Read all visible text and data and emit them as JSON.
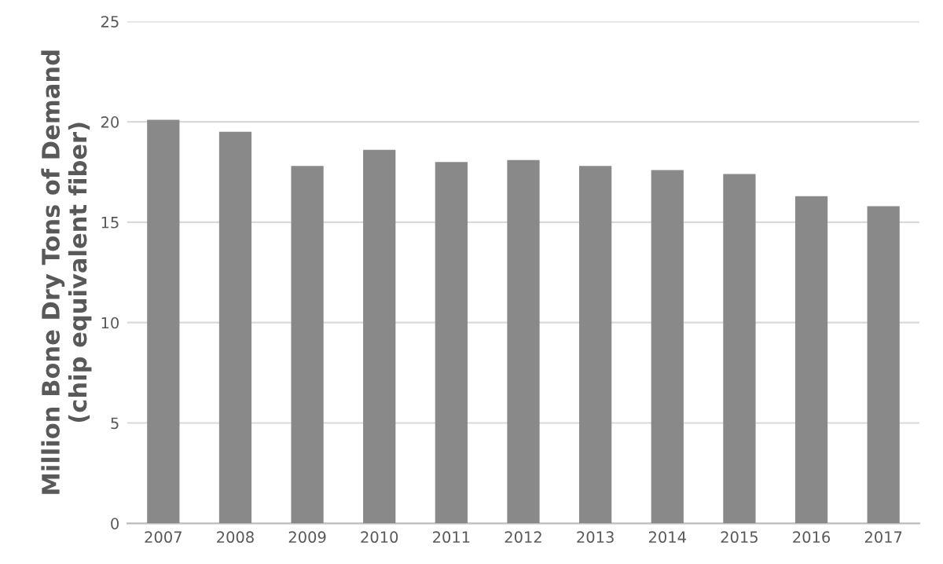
{
  "chart_data": {
    "type": "bar",
    "ylabel": "Million Bone Dry Tons of Demand\n(chip equivalent fiber)",
    "categories": [
      "2007",
      "2008",
      "2009",
      "2010",
      "2011",
      "2012",
      "2013",
      "2014",
      "2015",
      "2016",
      "2017"
    ],
    "values": [
      20.1,
      19.5,
      17.8,
      18.6,
      18.0,
      18.1,
      17.8,
      17.6,
      17.4,
      16.3,
      15.8
    ],
    "color": "#898989",
    "ylim": [
      0,
      25
    ],
    "yticks": [
      0,
      5,
      10,
      15,
      20,
      25
    ],
    "grid": "y"
  }
}
